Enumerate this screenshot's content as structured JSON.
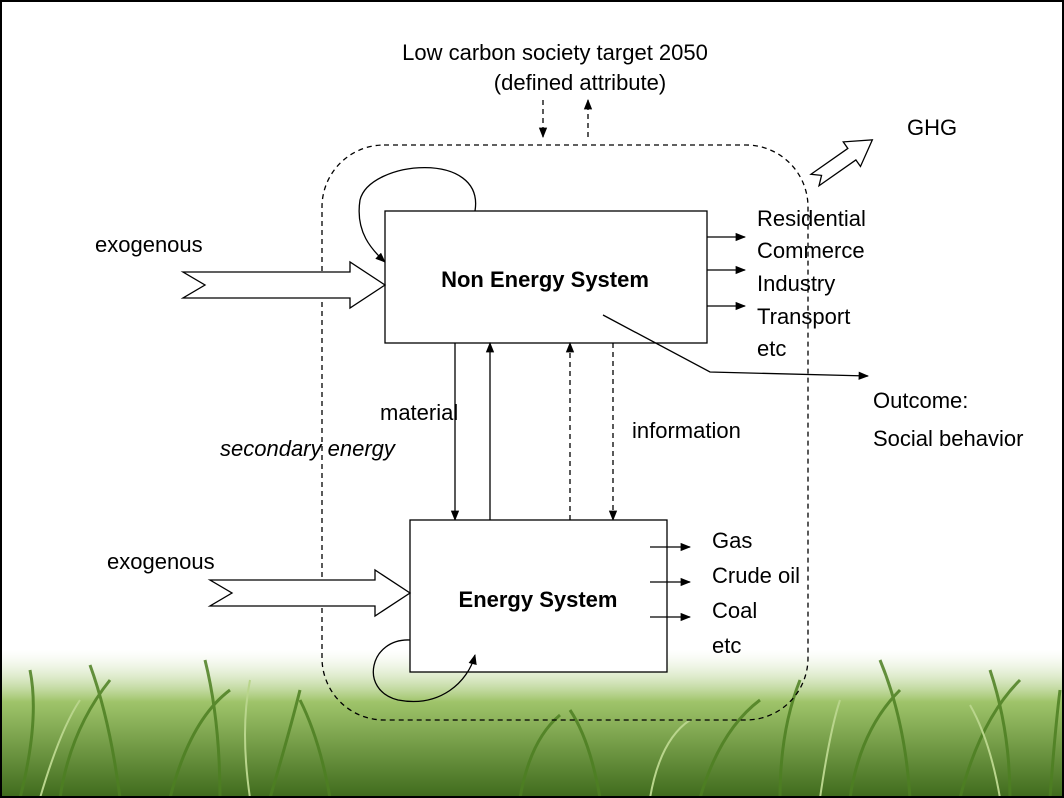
{
  "target": {
    "line1": "Low carbon society target 2050",
    "line2": "(defined attribute)"
  },
  "ghg": "GHG",
  "nodes": [
    {
      "label": "Non Energy System",
      "input": "exogenous",
      "outputs": [
        "Residential",
        "Commerce",
        "Industry",
        "Transport",
        "etc"
      ]
    },
    {
      "label": "Energy System",
      "input": "exogenous",
      "outputs": [
        "Gas",
        "Crude oil",
        "Coal",
        "etc"
      ]
    }
  ],
  "flows": {
    "material": "material",
    "secondary": "secondary energy",
    "information": "information"
  },
  "outcome": {
    "line1": "Outcome:",
    "line2": "Social behavior"
  }
}
